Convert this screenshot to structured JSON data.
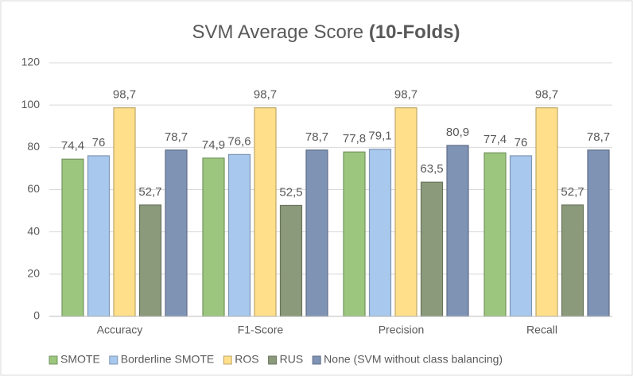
{
  "chart_data": {
    "type": "bar",
    "title": {
      "text": "SVM Average Score",
      "emphasis": "(10-Folds)"
    },
    "categories": [
      "Accuracy",
      "F1-Score",
      "Precision",
      "Recall"
    ],
    "series": [
      {
        "name": "SMOTE",
        "color": "#9cc67e",
        "values": [
          74.4,
          74.9,
          77.8,
          77.4
        ],
        "value_labels": [
          "74,4",
          "74,9",
          "77,8",
          "77,4"
        ]
      },
      {
        "name": "Borderline SMOTE",
        "color": "#a8c8ee",
        "values": [
          76,
          76.6,
          79.1,
          76
        ],
        "value_labels": [
          "76",
          "76,6",
          "79,1",
          "76"
        ]
      },
      {
        "name": "ROS",
        "color": "#ffdf8a",
        "values": [
          98.7,
          98.7,
          98.7,
          98.7
        ],
        "value_labels": [
          "98,7",
          "98,7",
          "98,7",
          "98,7"
        ]
      },
      {
        "name": "RUS",
        "color": "#8b9a7b",
        "values": [
          52.7,
          52.5,
          63.5,
          52.7
        ],
        "value_labels": [
          "52,7",
          "52,5",
          "63,5",
          "52,7"
        ]
      },
      {
        "name": "None (SVM without class balancing)",
        "color": "#7f93b5",
        "values": [
          78.7,
          78.7,
          80.9,
          78.7
        ],
        "value_labels": [
          "78,7",
          "78,7",
          "80,9",
          "78,7"
        ]
      }
    ],
    "ylim": [
      0,
      120
    ],
    "yticks": [
      0,
      20,
      40,
      60,
      80,
      100,
      120
    ],
    "grid": true,
    "legend": "bottom"
  }
}
